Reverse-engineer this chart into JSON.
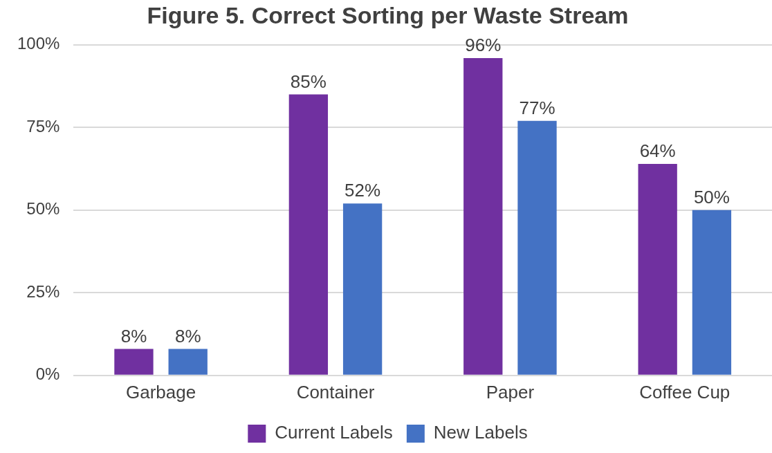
{
  "chart_data": {
    "type": "bar",
    "title": "Figure 5. Correct Sorting per Waste Stream",
    "categories": [
      "Garbage",
      "Container",
      "Paper",
      "Coffee Cup"
    ],
    "series": [
      {
        "name": "Current Labels",
        "color": "#7030a0",
        "values": [
          8,
          85,
          96,
          64
        ],
        "value_labels": [
          "8%",
          "85%",
          "96%",
          "64%"
        ]
      },
      {
        "name": "New Labels",
        "color": "#4472c4",
        "values": [
          8,
          52,
          77,
          50
        ],
        "value_labels": [
          "8%",
          "52%",
          "77%",
          "50%"
        ]
      }
    ],
    "ylim": [
      0,
      100
    ],
    "yticks": [
      {
        "value": 0,
        "label": "0%"
      },
      {
        "value": 25,
        "label": "25%"
      },
      {
        "value": 50,
        "label": "50%"
      },
      {
        "value": 75,
        "label": "75%"
      },
      {
        "value": 100,
        "label": "100%"
      }
    ],
    "grid": "y",
    "legend": "bottom"
  }
}
